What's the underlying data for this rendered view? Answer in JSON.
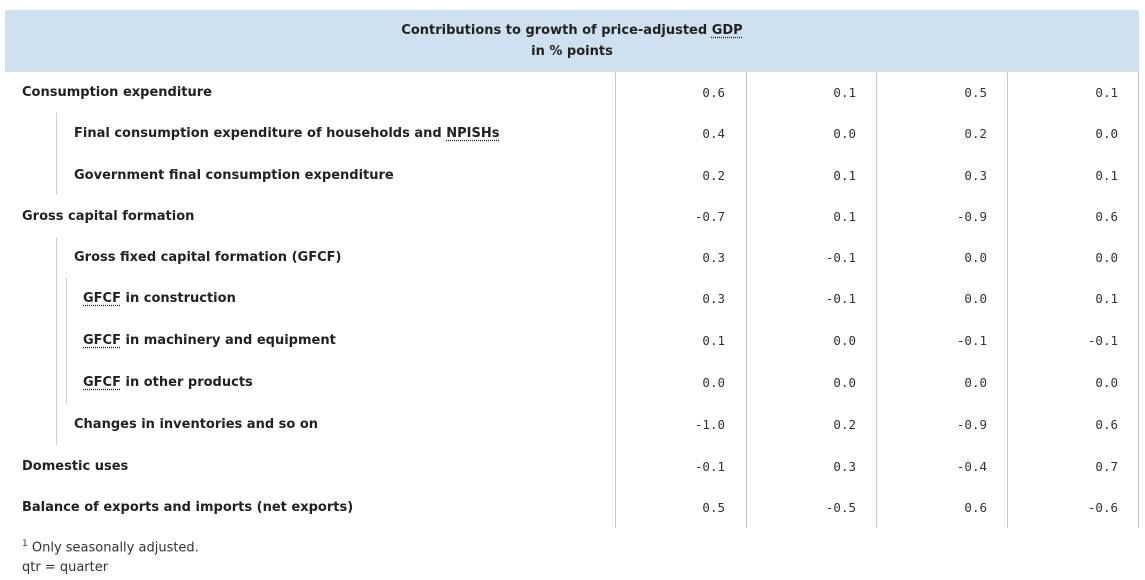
{
  "header": {
    "line1_prefix": "Contributions to growth of price-adjusted ",
    "line1_abbr": "GDP",
    "line2": "in % points"
  },
  "rows": [
    {
      "label": "Consumption expenditure",
      "values": [
        "0.6",
        "0.1",
        "0.5",
        "0.1"
      ]
    },
    {
      "label_prefix": "Final consumption expenditure of households and ",
      "label_abbr": "NPISHs",
      "values": [
        "0.4",
        "0.0",
        "0.2",
        "0.0"
      ]
    },
    {
      "label": "Government final consumption expenditure",
      "values": [
        "0.2",
        "0.1",
        "0.3",
        "0.1"
      ]
    },
    {
      "label": "Gross capital formation",
      "values": [
        "-0.7",
        "0.1",
        "-0.9",
        "0.6"
      ]
    },
    {
      "label": "Gross fixed capital formation (GFCF)",
      "values": [
        "0.3",
        "-0.1",
        "0.0",
        "0.0"
      ]
    },
    {
      "label_abbr": "GFCF",
      "label_suffix": " in construction",
      "values": [
        "0.3",
        "-0.1",
        "0.0",
        "0.1"
      ]
    },
    {
      "label_abbr": "GFCF",
      "label_suffix": " in machinery and equipment",
      "values": [
        "0.1",
        "0.0",
        "-0.1",
        "-0.1"
      ]
    },
    {
      "label_abbr": "GFCF",
      "label_suffix": " in other products",
      "values": [
        "0.0",
        "0.0",
        "0.0",
        "0.0"
      ]
    },
    {
      "label": "Changes in inventories and so on",
      "values": [
        "-1.0",
        "0.2",
        "-0.9",
        "0.6"
      ]
    },
    {
      "label": "Domestic uses",
      "values": [
        "-0.1",
        "0.3",
        "-0.4",
        "0.7"
      ]
    },
    {
      "label": "Balance of exports and imports (net exports)",
      "values": [
        "0.5",
        "-0.5",
        "0.6",
        "-0.6"
      ]
    }
  ],
  "footnotes": {
    "note1_marker": "1",
    "note1_text": " Only seasonally adjusted.",
    "note2": "qtr = quarter"
  }
}
